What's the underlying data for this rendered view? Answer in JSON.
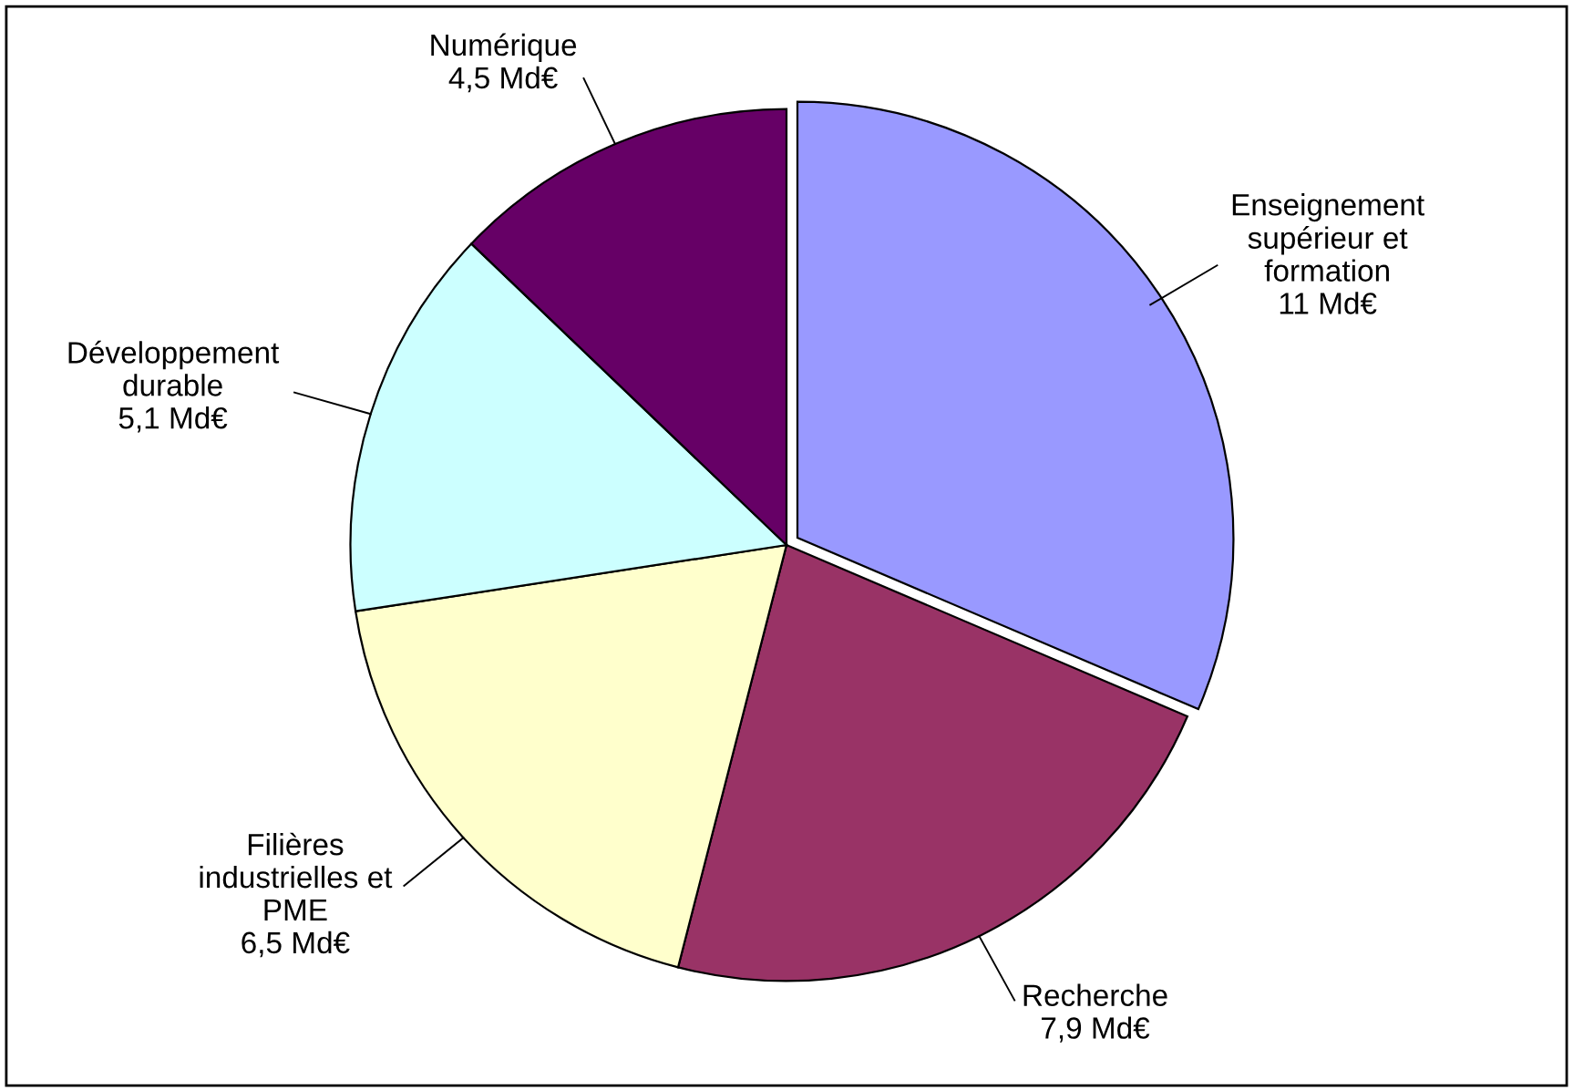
{
  "chart_data": {
    "type": "pie",
    "categories": [
      "Enseignement\nsupérieur et\nformation",
      "Recherche",
      "Filières\nindustrielles et\nPME",
      "Développement\ndurable",
      "Numérique"
    ],
    "values": [
      11,
      7.9,
      6.5,
      5.1,
      4.5
    ],
    "value_labels": [
      "11 Md€",
      "7,9 Md€",
      "6,5 Md€",
      "5,1 Md€",
      "4,5 Md€"
    ],
    "colors": [
      "#9999ff",
      "#993366",
      "#ffffcc",
      "#ccffff",
      "#660066"
    ],
    "legend": false
  }
}
